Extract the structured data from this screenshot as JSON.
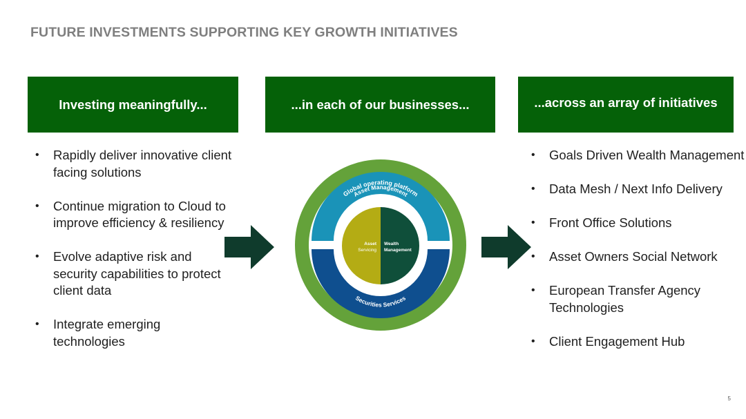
{
  "title": "FUTURE INVESTMENTS SUPPORTING KEY GROWTH INITIATIVES",
  "columns": [
    {
      "header": "Investing meaningfully..."
    },
    {
      "header": "...in each of our businesses..."
    },
    {
      "header": "...across an array of initiatives"
    }
  ],
  "left_bullets": [
    "Rapidly deliver innovative client facing  solutions",
    "Continue migration to  Cloud to improve efficiency & resiliency",
    "Evolve adaptive risk and security capabilities to protect client data",
    "Integrate emerging technologies"
  ],
  "right_bullets": [
    "Goals Driven Wealth Management",
    "Data Mesh / Next Info Delivery",
    "Front Office Solutions",
    "Asset Owners Social Network",
    "European Transfer Agency Technologies",
    "Client Engagement Hub"
  ],
  "diagram": {
    "outer_label": "Global operating platform",
    "top_label": "Asset Management",
    "bottom_label": "Securities Services",
    "center_left_line1": "Asset",
    "center_left_line2": "Servicing",
    "center_right_line1": "Wealth",
    "center_right_line2": "Management"
  },
  "bullet_char": "•",
  "page_number": "5",
  "colors": {
    "header_green": "#056108",
    "arrow_green": "#0f3b2c",
    "ring_green": "#64a23a",
    "asset_mgmt_blue": "#1a93b8",
    "securities_blue": "#0f4f8f",
    "asset_servicing_olive": "#b4ac14",
    "wealth_dark_green": "#0f4f3a"
  }
}
